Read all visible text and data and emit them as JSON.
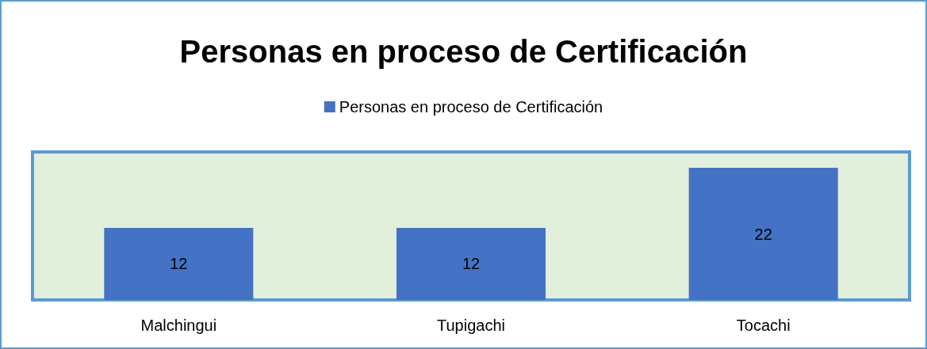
{
  "chart_data": {
    "type": "bar",
    "title": "Personas en proceso de Certificación",
    "categories": [
      "Malchingui",
      "Tupigachi",
      "Tocachi"
    ],
    "series": [
      {
        "name": "Personas en proceso de Certificación",
        "color": "#4472c4",
        "values": [
          12,
          12,
          22
        ]
      }
    ],
    "data_labels": true,
    "legend": "top"
  }
}
